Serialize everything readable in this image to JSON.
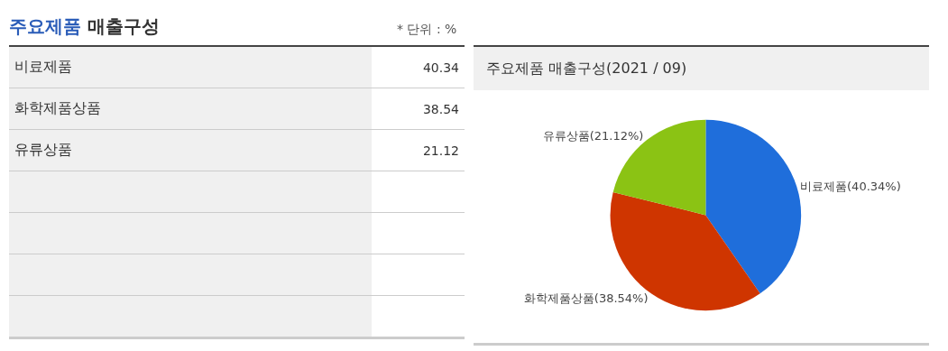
{
  "chart_data": [
    {
      "type": "other",
      "title": "주요제품 매출구성",
      "annotations": [
        "* 단위 : %"
      ],
      "categories": [
        "비료제품",
        "화학제품상품",
        "유류상품"
      ],
      "values": [
        40.34,
        38.54,
        21.12
      ],
      "data_labels": true
    },
    {
      "type": "pie",
      "title": "주요제품 매출구성(2021 / 09)",
      "categories": [
        "비료제품",
        "화학제품상품",
        "유류상품"
      ],
      "values": [
        40.34,
        38.54,
        21.12
      ],
      "colors": [
        "#1f6edb",
        "#cf3500",
        "#8bc314"
      ],
      "value_labels": [
        "(40.34%)",
        "(38.54%)",
        "(21.12%)"
      ],
      "legend": false
    }
  ]
}
